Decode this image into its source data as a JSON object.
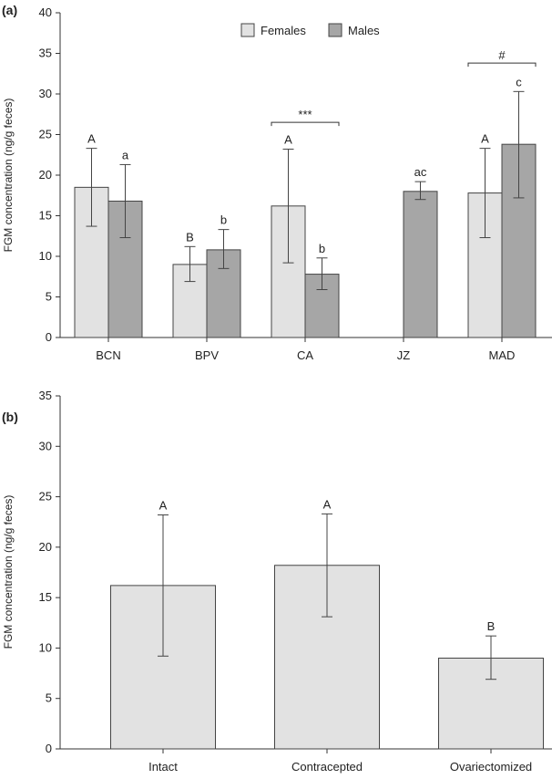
{
  "colors": {
    "females": "#e2e2e2",
    "males": "#a6a6a6",
    "axis": "#333333"
  },
  "chart_data": [
    {
      "panel": "(a)",
      "type": "bar",
      "ylabel": "FGM concentration (ng/g feces)",
      "ylim": [
        0,
        40
      ],
      "yticks": [
        0,
        5,
        10,
        15,
        20,
        25,
        30,
        35,
        40
      ],
      "categories": [
        "BCN",
        "BPV",
        "CA",
        "JZ",
        "MAD"
      ],
      "legend": {
        "placement": "top",
        "entries": [
          "Females",
          "Males"
        ]
      },
      "series": [
        {
          "name": "Females",
          "values": [
            18.5,
            9.0,
            16.2,
            null,
            17.8
          ],
          "err_low": [
            13.7,
            6.9,
            9.2,
            null,
            12.3
          ],
          "err_high": [
            23.3,
            11.2,
            23.2,
            null,
            23.3
          ],
          "letters": [
            "A",
            "B",
            "A",
            "",
            "A"
          ]
        },
        {
          "name": "Males",
          "values": [
            16.8,
            10.8,
            7.8,
            18.0,
            23.8
          ],
          "err_low": [
            12.3,
            8.5,
            5.9,
            17.0,
            17.2
          ],
          "err_high": [
            21.3,
            13.3,
            9.8,
            19.2,
            30.3
          ],
          "letters": [
            "a",
            "b",
            "b",
            "ac",
            "c"
          ]
        }
      ],
      "annotations": [
        {
          "category": "CA",
          "label": "***",
          "y": 26.5
        },
        {
          "category": "MAD",
          "label": "#",
          "y": 33.8
        }
      ]
    },
    {
      "panel": "(b)",
      "type": "bar",
      "ylabel": "FGM concentration (ng/g feces)",
      "ylim": [
        0,
        35
      ],
      "yticks": [
        0,
        5,
        10,
        15,
        20,
        25,
        30,
        35
      ],
      "categories": [
        "Intact",
        "Contracepted",
        "Ovariectomized"
      ],
      "series": [
        {
          "name": "Females",
          "values": [
            16.2,
            18.2,
            9.0
          ],
          "err_low": [
            9.2,
            13.1,
            6.9
          ],
          "err_high": [
            23.2,
            23.3,
            11.2
          ],
          "letters": [
            "A",
            "A",
            "B"
          ]
        }
      ]
    }
  ]
}
